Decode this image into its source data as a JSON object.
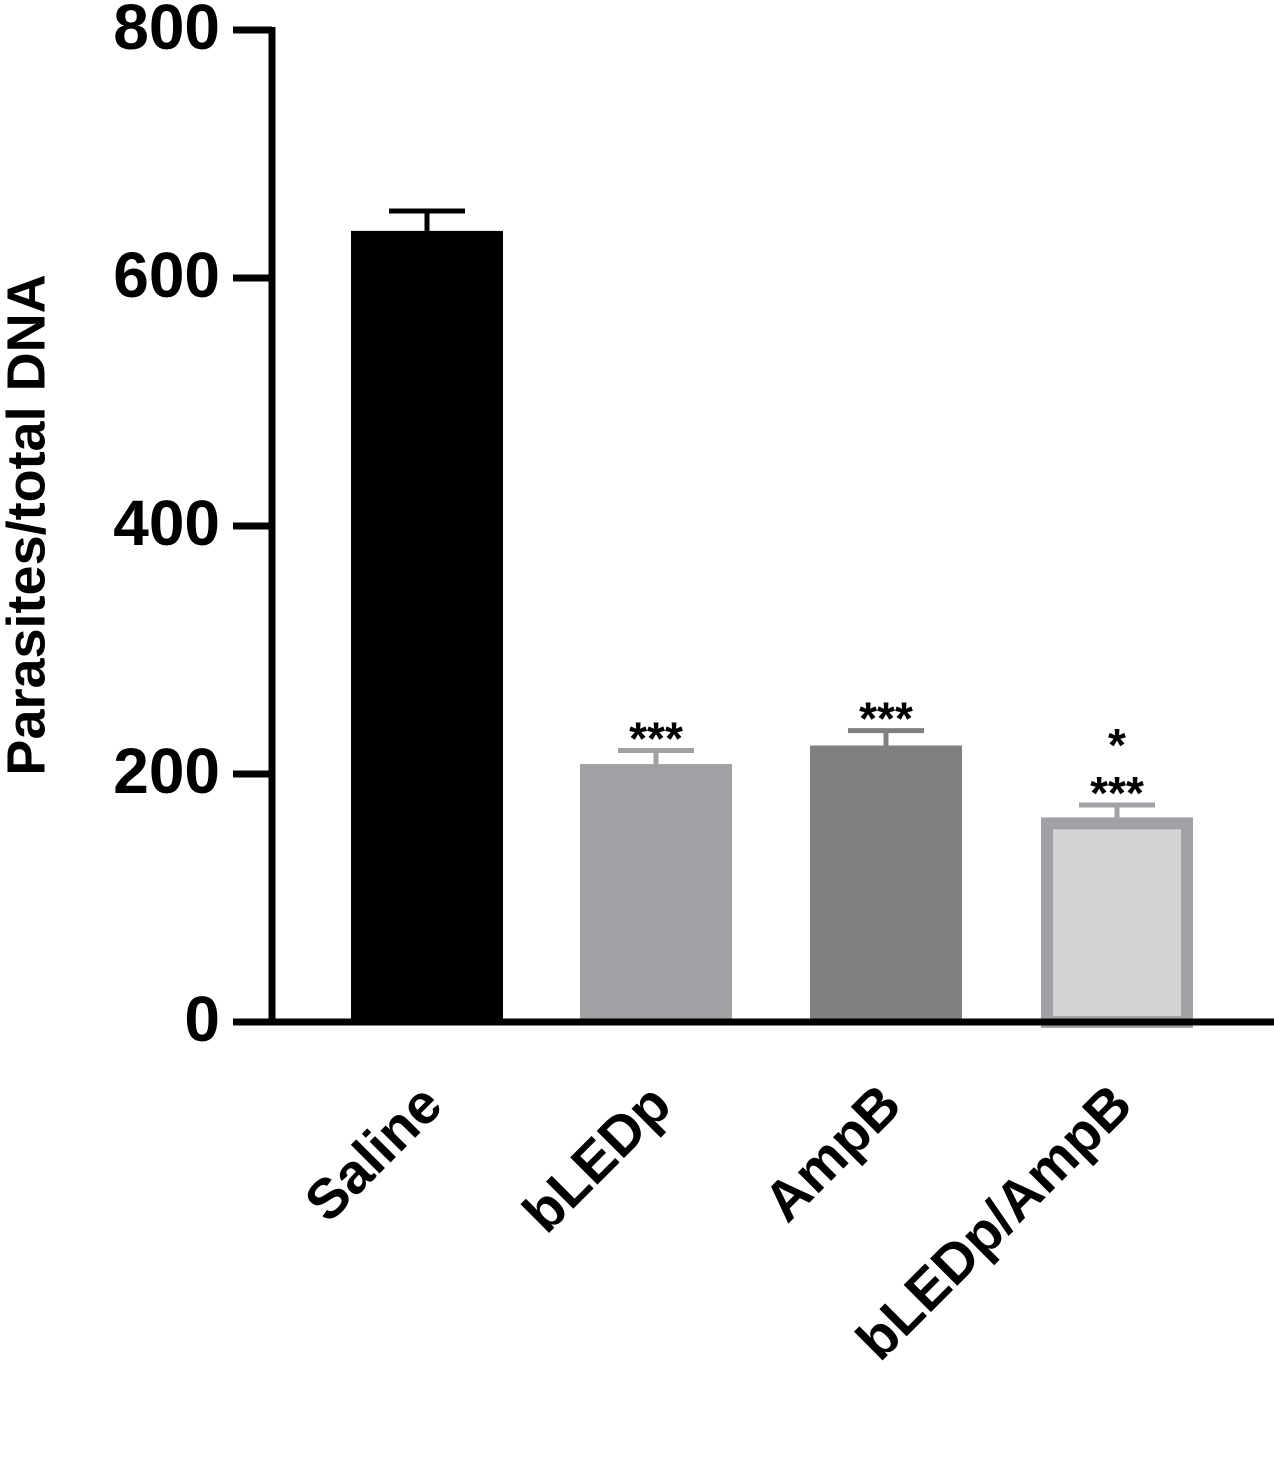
{
  "chart_data": {
    "type": "bar",
    "y_label": "Parasites/total DNA",
    "categories": [
      "Saline",
      "bLEDp",
      "AmpB",
      "bLEDp/AmpB"
    ],
    "values": [
      638,
      208,
      223,
      165
    ],
    "errors": [
      16,
      11,
      12,
      10
    ],
    "colors": [
      "#000000",
      "#a0a0a5",
      "#808080",
      "#d4d4d4"
    ],
    "edge_colors": [
      "#000000",
      "#a0a0a5",
      "#808080",
      "#a2a2a6"
    ],
    "annotations": [
      {
        "category": "bLEDp",
        "lines": [
          "***"
        ]
      },
      {
        "category": "AmpB",
        "lines": [
          "***"
        ]
      },
      {
        "category": "bLEDp/AmpB",
        "lines": [
          "*",
          "***"
        ]
      }
    ],
    "ylim": [
      0,
      800
    ],
    "yticks": [
      0,
      200,
      400,
      600,
      800
    ]
  }
}
